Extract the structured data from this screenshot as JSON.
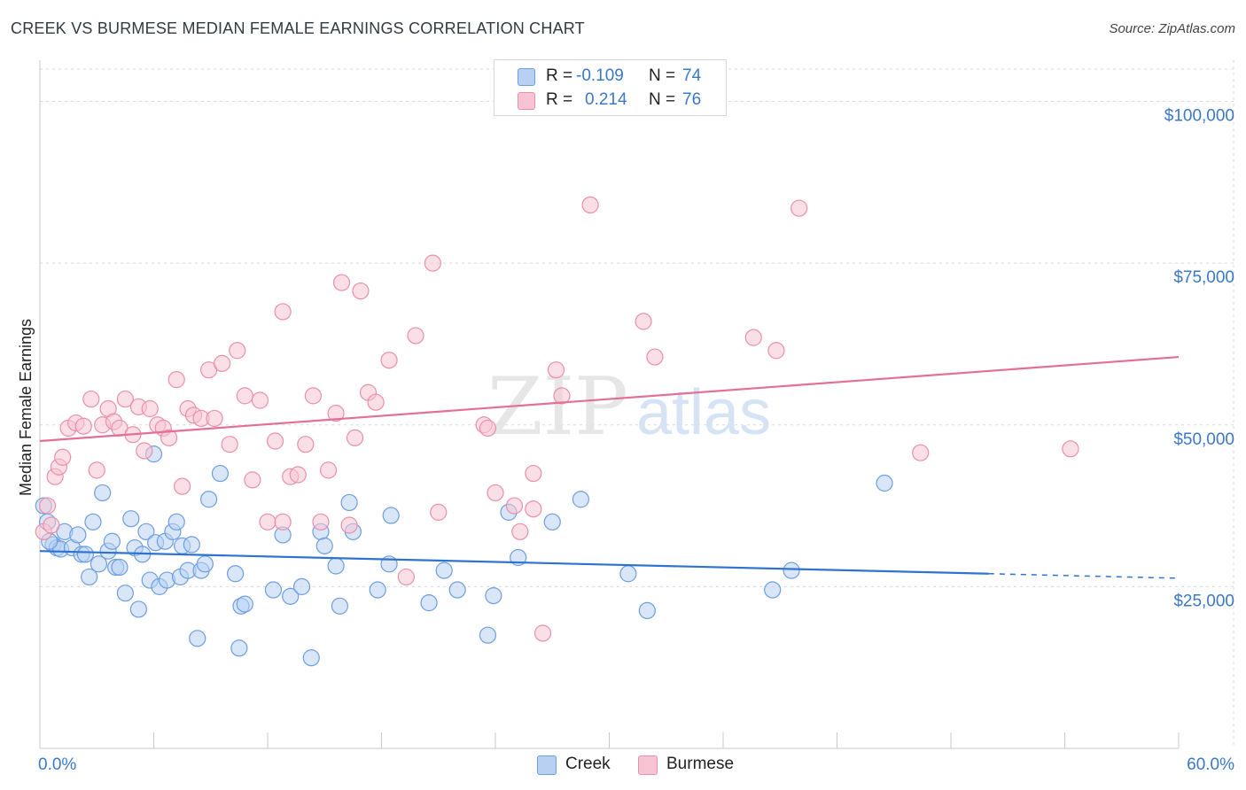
{
  "title": "CREEK VS BURMESE MEDIAN FEMALE EARNINGS CORRELATION CHART",
  "source": "Source: ZipAtlas.com",
  "colors": {
    "creek_fill": "#b8d1f3",
    "creek_stroke": "#6d9ee0",
    "creek_line": "#2f73d1",
    "burmese_fill": "#f7c4d4",
    "burmese_stroke": "#ea8fab",
    "burmese_line": "#e46f96",
    "axis_text": "#3b78c9",
    "grid": "#d9d9d9"
  },
  "legend": {
    "creek": {
      "r_label": "R =",
      "r_value": "-0.109",
      "n_label": "N =",
      "n_value": "74"
    },
    "burmese": {
      "r_label": "R =",
      "r_value": "0.214",
      "n_label": "N =",
      "n_value": "76"
    }
  },
  "bottom_legend": {
    "creek": "Creek",
    "burmese": "Burmese"
  },
  "watermark": {
    "zip": "ZIP",
    "atlas": "atlas"
  },
  "chart_data": {
    "type": "scatter",
    "title": "CREEK VS BURMESE MEDIAN FEMALE EARNINGS CORRELATION CHART",
    "xlabel": "",
    "ylabel": "Median Female Earnings",
    "xlim": [
      0,
      60
    ],
    "ylim": [
      0,
      105000
    ],
    "x_tick_labels": [
      "0.0%",
      "60.0%"
    ],
    "y_ticks": [
      25000,
      50000,
      75000,
      100000
    ],
    "y_tick_labels": [
      "$25,000",
      "$50,000",
      "$75,000",
      "$100,000"
    ],
    "grid": true,
    "series": [
      {
        "name": "Creek",
        "trend": {
          "x0": 0,
          "y0": 30500,
          "x1": 50,
          "y1": 27000,
          "dash_to_x": 60,
          "dash_to_y": 26300
        },
        "points": [
          [
            0.2,
            37500
          ],
          [
            0.4,
            35000
          ],
          [
            0.7,
            31500
          ],
          [
            0.9,
            31000
          ],
          [
            1.1,
            30800
          ],
          [
            1.3,
            33500
          ],
          [
            1.7,
            31000
          ],
          [
            2.0,
            33000
          ],
          [
            2.2,
            30000
          ],
          [
            2.4,
            30000
          ],
          [
            2.6,
            26500
          ],
          [
            2.8,
            35000
          ],
          [
            3.1,
            28500
          ],
          [
            3.3,
            39500
          ],
          [
            3.6,
            30500
          ],
          [
            3.8,
            32000
          ],
          [
            4.0,
            28000
          ],
          [
            4.2,
            28000
          ],
          [
            4.5,
            24000
          ],
          [
            4.8,
            35500
          ],
          [
            5.0,
            31000
          ],
          [
            5.2,
            21500
          ],
          [
            5.4,
            30000
          ],
          [
            5.6,
            33500
          ],
          [
            5.8,
            26000
          ],
          [
            6.0,
            45500
          ],
          [
            6.1,
            31800
          ],
          [
            6.3,
            25000
          ],
          [
            6.6,
            32000
          ],
          [
            6.7,
            26000
          ],
          [
            7.0,
            33500
          ],
          [
            7.2,
            35000
          ],
          [
            7.4,
            26500
          ],
          [
            7.5,
            31300
          ],
          [
            7.8,
            27500
          ],
          [
            8.0,
            31500
          ],
          [
            8.3,
            17000
          ],
          [
            8.5,
            27500
          ],
          [
            8.7,
            28500
          ],
          [
            8.9,
            38500
          ],
          [
            9.5,
            42500
          ],
          [
            10.3,
            27000
          ],
          [
            10.5,
            15500
          ],
          [
            10.6,
            22000
          ],
          [
            10.8,
            22300
          ],
          [
            12.3,
            24500
          ],
          [
            12.8,
            33000
          ],
          [
            13.2,
            23500
          ],
          [
            13.8,
            25000
          ],
          [
            14.3,
            14000
          ],
          [
            14.8,
            33500
          ],
          [
            15.0,
            31300
          ],
          [
            15.6,
            28200
          ],
          [
            15.8,
            22000
          ],
          [
            16.3,
            38000
          ],
          [
            16.5,
            33500
          ],
          [
            17.8,
            24500
          ],
          [
            18.5,
            36000
          ],
          [
            18.4,
            28500
          ],
          [
            20.5,
            22500
          ],
          [
            21.3,
            27500
          ],
          [
            22.0,
            24500
          ],
          [
            23.6,
            17500
          ],
          [
            23.9,
            23600
          ],
          [
            24.7,
            36500
          ],
          [
            25.2,
            29500
          ],
          [
            27.0,
            35000
          ],
          [
            28.5,
            38500
          ],
          [
            31.0,
            27000
          ],
          [
            32.0,
            21300
          ],
          [
            38.6,
            24500
          ],
          [
            39.6,
            27500
          ],
          [
            44.5,
            41000
          ],
          [
            0.5,
            32000
          ]
        ]
      },
      {
        "name": "Burmese",
        "trend": {
          "x0": 0,
          "y0": 47500,
          "x1": 60,
          "y1": 60500
        },
        "points": [
          [
            0.2,
            33500
          ],
          [
            0.4,
            37500
          ],
          [
            0.6,
            34500
          ],
          [
            0.8,
            42000
          ],
          [
            1.0,
            43500
          ],
          [
            1.2,
            45000
          ],
          [
            1.5,
            49500
          ],
          [
            1.9,
            50300
          ],
          [
            2.3,
            49800
          ],
          [
            2.7,
            54000
          ],
          [
            3.0,
            43000
          ],
          [
            3.3,
            50000
          ],
          [
            3.6,
            52500
          ],
          [
            3.9,
            50500
          ],
          [
            4.2,
            49500
          ],
          [
            4.5,
            54000
          ],
          [
            4.9,
            48500
          ],
          [
            5.2,
            52800
          ],
          [
            5.5,
            46000
          ],
          [
            5.8,
            52500
          ],
          [
            6.2,
            50000
          ],
          [
            6.5,
            49500
          ],
          [
            6.8,
            48000
          ],
          [
            7.2,
            57000
          ],
          [
            7.5,
            40500
          ],
          [
            7.8,
            52500
          ],
          [
            8.1,
            51500
          ],
          [
            8.5,
            51000
          ],
          [
            8.9,
            58500
          ],
          [
            9.2,
            51000
          ],
          [
            9.6,
            59500
          ],
          [
            10.0,
            47000
          ],
          [
            10.4,
            61500
          ],
          [
            10.8,
            54500
          ],
          [
            11.2,
            41500
          ],
          [
            11.6,
            53800
          ],
          [
            12.0,
            35000
          ],
          [
            12.4,
            47500
          ],
          [
            12.8,
            67500
          ],
          [
            13.2,
            42000
          ],
          [
            13.6,
            42300
          ],
          [
            14.0,
            47000
          ],
          [
            14.4,
            54500
          ],
          [
            14.8,
            35000
          ],
          [
            15.2,
            43000
          ],
          [
            15.6,
            51800
          ],
          [
            15.9,
            72000
          ],
          [
            16.3,
            34500
          ],
          [
            16.6,
            48000
          ],
          [
            16.9,
            70700
          ],
          [
            17.3,
            55000
          ],
          [
            17.7,
            53500
          ],
          [
            18.4,
            60000
          ],
          [
            19.3,
            26500
          ],
          [
            19.8,
            63800
          ],
          [
            20.7,
            75000
          ],
          [
            21.0,
            36500
          ],
          [
            23.4,
            50000
          ],
          [
            23.6,
            49500
          ],
          [
            24.0,
            39500
          ],
          [
            25.0,
            37500
          ],
          [
            25.3,
            33500
          ],
          [
            26.0,
            42500
          ],
          [
            26.5,
            17800
          ],
          [
            27.2,
            58500
          ],
          [
            27.5,
            54500
          ],
          [
            29.0,
            84000
          ],
          [
            31.8,
            66000
          ],
          [
            32.4,
            60500
          ],
          [
            37.6,
            63500
          ],
          [
            38.8,
            61500
          ],
          [
            40.0,
            83500
          ],
          [
            46.4,
            45700
          ],
          [
            54.3,
            46300
          ],
          [
            26.0,
            37000
          ],
          [
            12.8,
            35000
          ]
        ]
      }
    ]
  }
}
